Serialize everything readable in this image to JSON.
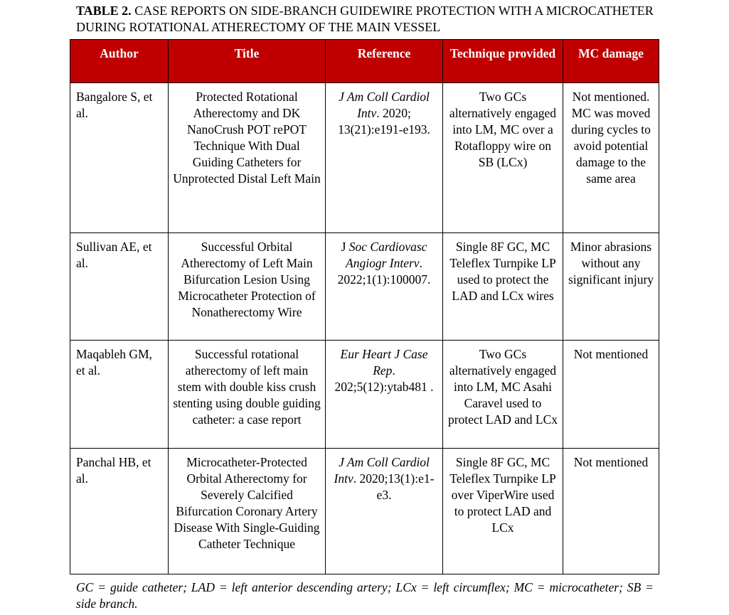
{
  "caption": {
    "label": "TABLE 2.",
    "text": " CASE REPORTS ON SIDE-BRANCH GUIDEWIRE PROTECTION WITH A MICROCATHETER DURING ROTATIONAL ATHERECTOMY OF THE MAIN VESSEL"
  },
  "header_color": "#c00000",
  "columns": [
    "Author",
    "Title",
    "Reference",
    "Technique provided",
    "MC damage"
  ],
  "rows": [
    {
      "author": "Bangalore S, et al.",
      "title": "Protected Rotational Atherectomy and DK NanoCrush POT rePOT Technique With Dual Guiding Catheters for Unprotected Distal Left Main",
      "reference": {
        "pre": "",
        "italic": "J Am Coll Cardiol Intv",
        "post": ". 2020; 13(21):e191-e193."
      },
      "technique": "Two GCs alternatively engaged into LM, MC over a Rotafloppy wire on SB (LCx)",
      "damage": "Not mentioned. MC was moved during cycles to avoid potential damage to the same area"
    },
    {
      "author": "Sullivan AE, et al.",
      "title": "Successful Orbital Atherectomy of Left Main Bifurcation Lesion Using Microcatheter Protection of Nonatherectomy Wire",
      "reference": {
        "pre": "J ",
        "italic": "Soc Cardiovasc Angiogr Interv",
        "post": ". 2022;1(1):100007."
      },
      "technique": "Single 8F GC, MC Teleflex Turnpike LP used to protect the LAD and LCx wires",
      "damage": "Minor abrasions without any significant injury"
    },
    {
      "author": "Maqableh GM, et al.",
      "title": "Successful rotational atherectomy of left main stem with double kiss crush stenting using double guiding catheter: a case report",
      "reference": {
        "pre": "",
        "italic": "Eur Heart J Case Rep",
        "post": ". 202;5(12):ytab481 ."
      },
      "technique": "Two GCs alternatively engaged into LM, MC Asahi Caravel used to protect LAD and LCx",
      "damage": "Not mentioned"
    },
    {
      "author": "Panchal HB, et al.",
      "title": "Microcatheter-Protected Orbital Atherectomy for Severely Calcified Bifurcation Coronary Artery Disease With Single-Guiding Catheter Technique",
      "reference": {
        "pre": "",
        "italic": "J Am Coll Cardiol Intv",
        "post": ". 2020;13(1):e1-e3."
      },
      "technique": "Single 8F GC, MC Teleflex Turnpike LP over ViperWire used to protect LAD and LCx",
      "damage": "Not mentioned"
    }
  ],
  "footnote": "GC = guide catheter; LAD = left anterior descending artery; LCx = left circumflex; MC = microcatheter; SB = side branch."
}
